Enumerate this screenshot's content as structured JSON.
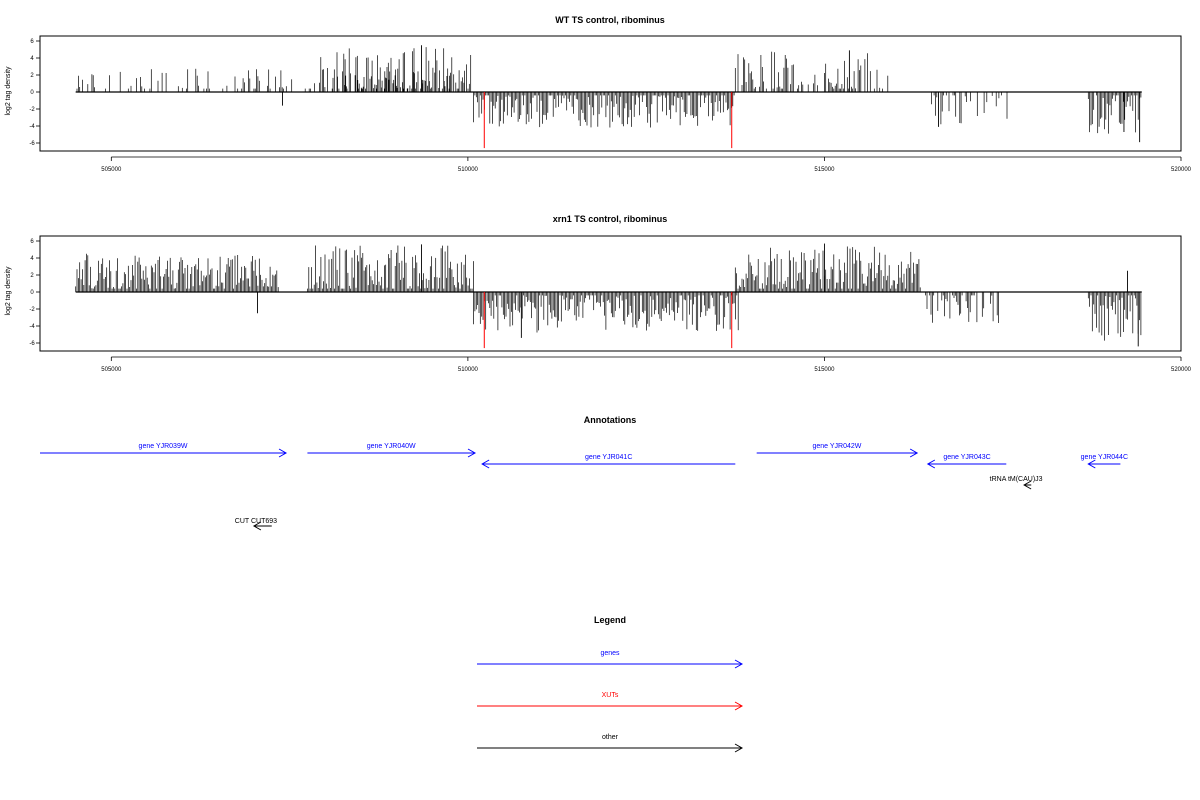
{
  "colors": {
    "gene": "#0000ff",
    "xut": "#ff0000",
    "other": "#000000",
    "frame": "#000000"
  },
  "chart_data": [
    {
      "type": "bar",
      "title": "WT TS control, ribominus",
      "ylabel": "log2 tag density",
      "xlim": [
        504000,
        520000
      ],
      "ylim": [
        -6.6,
        6.2
      ],
      "xticks": [
        505000,
        510000,
        515000,
        520000
      ],
      "yticks": [
        -6,
        -4,
        -2,
        0,
        2,
        4,
        6
      ],
      "ytick_labels": [
        "-6",
        "-4",
        "-2",
        "0",
        "2",
        "4",
        "6"
      ],
      "xtick_labels": [
        "505000",
        "510000",
        "515000",
        "520000"
      ],
      "baseline_range": [
        504500,
        519450
      ],
      "segments": [
        {
          "start": 504500,
          "end": 510080,
          "sign": 1,
          "max": 2.8,
          "density": 0.35,
          "seed": 11
        },
        {
          "start": 507900,
          "end": 510050,
          "sign": 1,
          "max": 5.4,
          "density": 0.7,
          "seed": 12
        },
        {
          "start": 510080,
          "end": 513750,
          "sign": -1,
          "max": 4.2,
          "density": 1.0,
          "seed": 13
        },
        {
          "start": 513750,
          "end": 515900,
          "sign": 1,
          "max": 4.8,
          "density": 0.7,
          "seed": 14
        },
        {
          "start": 516500,
          "end": 517600,
          "sign": -1,
          "max": 4.0,
          "density": 0.35,
          "seed": 15
        },
        {
          "start": 518700,
          "end": 519450,
          "sign": -1,
          "max": 5.0,
          "density": 0.9,
          "seed": 16
        }
      ],
      "peaks": [
        {
          "x": 507400,
          "y": -1.6
        },
        {
          "x": 509350,
          "y": 5.5
        },
        {
          "x": 515350,
          "y": 4.9
        },
        {
          "x": 516600,
          "y": -4.1
        },
        {
          "x": 519200,
          "y": -4.7
        },
        {
          "x": 519420,
          "y": -5.9
        }
      ],
      "xut_marks": [
        {
          "x": 510230,
          "y": -6.6
        },
        {
          "x": 513700,
          "y": -6.6
        }
      ]
    },
    {
      "type": "bar",
      "title": "xrn1 TS control, ribominus",
      "ylabel": "log2 tag density",
      "xlim": [
        504000,
        520000
      ],
      "ylim": [
        -6.6,
        6.2
      ],
      "xticks": [
        505000,
        510000,
        515000,
        520000
      ],
      "yticks": [
        -6,
        -4,
        -2,
        0,
        2,
        4,
        6
      ],
      "ytick_labels": [
        "-6",
        "-4",
        "-2",
        "0",
        "2",
        "4",
        "6"
      ],
      "xtick_labels": [
        "505000",
        "510000",
        "515000",
        "520000"
      ],
      "baseline_range": [
        504500,
        519450
      ],
      "segments": [
        {
          "start": 504500,
          "end": 507350,
          "sign": 1,
          "max": 4.5,
          "density": 1.0,
          "seed": 21
        },
        {
          "start": 507750,
          "end": 510080,
          "sign": 1,
          "max": 5.5,
          "density": 1.0,
          "seed": 22
        },
        {
          "start": 510080,
          "end": 513800,
          "sign": -1,
          "max": 4.8,
          "density": 1.0,
          "seed": 23
        },
        {
          "start": 513750,
          "end": 516350,
          "sign": 1,
          "max": 5.4,
          "density": 1.0,
          "seed": 24
        },
        {
          "start": 516400,
          "end": 517450,
          "sign": -1,
          "max": 3.7,
          "density": 0.6,
          "seed": 25
        },
        {
          "start": 518700,
          "end": 519450,
          "sign": -1,
          "max": 5.8,
          "density": 1.0,
          "seed": 26
        }
      ],
      "peaks": [
        {
          "x": 507050,
          "y": -2.5
        },
        {
          "x": 509350,
          "y": 5.6
        },
        {
          "x": 510750,
          "y": -5.4
        },
        {
          "x": 515000,
          "y": 5.7
        },
        {
          "x": 519250,
          "y": 2.5
        },
        {
          "x": 519400,
          "y": -6.4
        }
      ],
      "xut_marks": [
        {
          "x": 510230,
          "y": -6.6
        },
        {
          "x": 513700,
          "y": -6.6
        }
      ]
    }
  ],
  "annotations": {
    "title": "Annotations",
    "xlim": [
      504000,
      520000
    ],
    "items": [
      {
        "label": "gene YJR039W",
        "start": 504000,
        "end": 507450,
        "strand": "+",
        "kind": "gene",
        "row": 0
      },
      {
        "label": "gene YJR040W",
        "start": 507750,
        "end": 510100,
        "strand": "+",
        "kind": "gene",
        "row": 0
      },
      {
        "label": "gene YJR041C",
        "start": 510200,
        "end": 513750,
        "strand": "-",
        "kind": "gene",
        "row": 1
      },
      {
        "label": "gene YJR042W",
        "start": 514050,
        "end": 516300,
        "strand": "+",
        "kind": "gene",
        "row": 0
      },
      {
        "label": "gene YJR043C",
        "start": 516450,
        "end": 517550,
        "strand": "-",
        "kind": "gene",
        "row": 1
      },
      {
        "label": "gene YJR044C",
        "start": 518700,
        "end": 519150,
        "strand": "-",
        "kind": "gene",
        "row": 1
      },
      {
        "label": "tRNA tM(CAU)J3",
        "start": 517800,
        "end": 517900,
        "strand": "-",
        "kind": "other",
        "row": 2
      },
      {
        "label": "CUT CUT693",
        "start": 507000,
        "end": 507250,
        "strand": "-",
        "kind": "other",
        "row": 3
      }
    ]
  },
  "legend": {
    "title": "Legend",
    "items": [
      {
        "label": "genes",
        "kind": "gene"
      },
      {
        "label": "XUTs",
        "kind": "xut"
      },
      {
        "label": "other",
        "kind": "other"
      }
    ]
  }
}
